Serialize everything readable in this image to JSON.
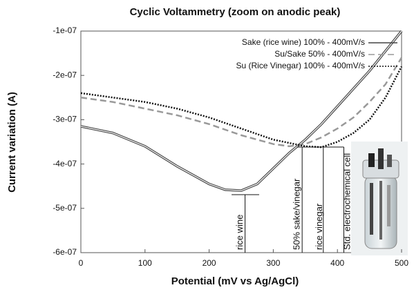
{
  "chart_data": {
    "type": "line",
    "title": "Cyclic Voltammetry (zoom on anodic peak)",
    "xlabel": "Potential (mV vs Ag/AgCl)",
    "ylabel": "Current variation (A)",
    "xlim": [
      0,
      500
    ],
    "xticks": [
      0,
      100,
      200,
      300,
      400,
      500
    ],
    "ylim": [
      -6e-07,
      -1e-07
    ],
    "yticks": [
      {
        "value": -6e-07,
        "label": "-6e-07"
      },
      {
        "value": -5e-07,
        "label": "-5e-07"
      },
      {
        "value": -4e-07,
        "label": "-4e-07"
      },
      {
        "value": -3e-07,
        "label": "-3e-07"
      },
      {
        "value": -2e-07,
        "label": "-2e-07"
      },
      {
        "value": -1e-07,
        "label": "-1e-07"
      }
    ],
    "legend": "upper right",
    "series": [
      {
        "name": "Sake (rice wine) 100% - 400mV/s",
        "color": "#444444",
        "style": "solid",
        "x": [
          0,
          50,
          100,
          150,
          200,
          225,
          250,
          275,
          300,
          325,
          350,
          375,
          400,
          425,
          450,
          475,
          500
        ],
        "values": [
          -3.15e-07,
          -3.3e-07,
          -3.6e-07,
          -4.05e-07,
          -4.45e-07,
          -4.58e-07,
          -4.6e-07,
          -4.45e-07,
          -4.1e-07,
          -3.75e-07,
          -3.45e-07,
          -3.1e-07,
          -2.7e-07,
          -2.3e-07,
          -1.9e-07,
          -1.45e-07,
          -1e-07
        ]
      },
      {
        "name": "Su/Sake 50% - 400mV/s",
        "color": "#999999",
        "style": "dashed",
        "x": [
          0,
          50,
          100,
          150,
          200,
          250,
          300,
          325,
          350,
          375,
          400,
          425,
          450,
          475,
          500
        ],
        "values": [
          -2.5e-07,
          -2.6e-07,
          -2.75e-07,
          -2.9e-07,
          -3.1e-07,
          -3.35e-07,
          -3.55e-07,
          -3.6e-07,
          -3.55e-07,
          -3.4e-07,
          -3.2e-07,
          -2.95e-07,
          -2.6e-07,
          -2.2e-07,
          -1.6e-07
        ]
      },
      {
        "name": "Su (Rice Vinegar) 100% - 400mV/s",
        "color": "#111111",
        "style": "dotted",
        "x": [
          0,
          50,
          100,
          150,
          200,
          250,
          300,
          350,
          375,
          400,
          425,
          450,
          475,
          500
        ],
        "values": [
          -2.4e-07,
          -2.5e-07,
          -2.6e-07,
          -2.75e-07,
          -2.95e-07,
          -3.2e-07,
          -3.45e-07,
          -3.6e-07,
          -3.62e-07,
          -3.5e-07,
          -3.3e-07,
          -3e-07,
          -2.5e-07,
          -1.8e-07
        ]
      }
    ],
    "annotations": [
      "rice wine",
      "50% sake/vinegar",
      "rice vinegar",
      "Std. electrochemical cell"
    ]
  }
}
